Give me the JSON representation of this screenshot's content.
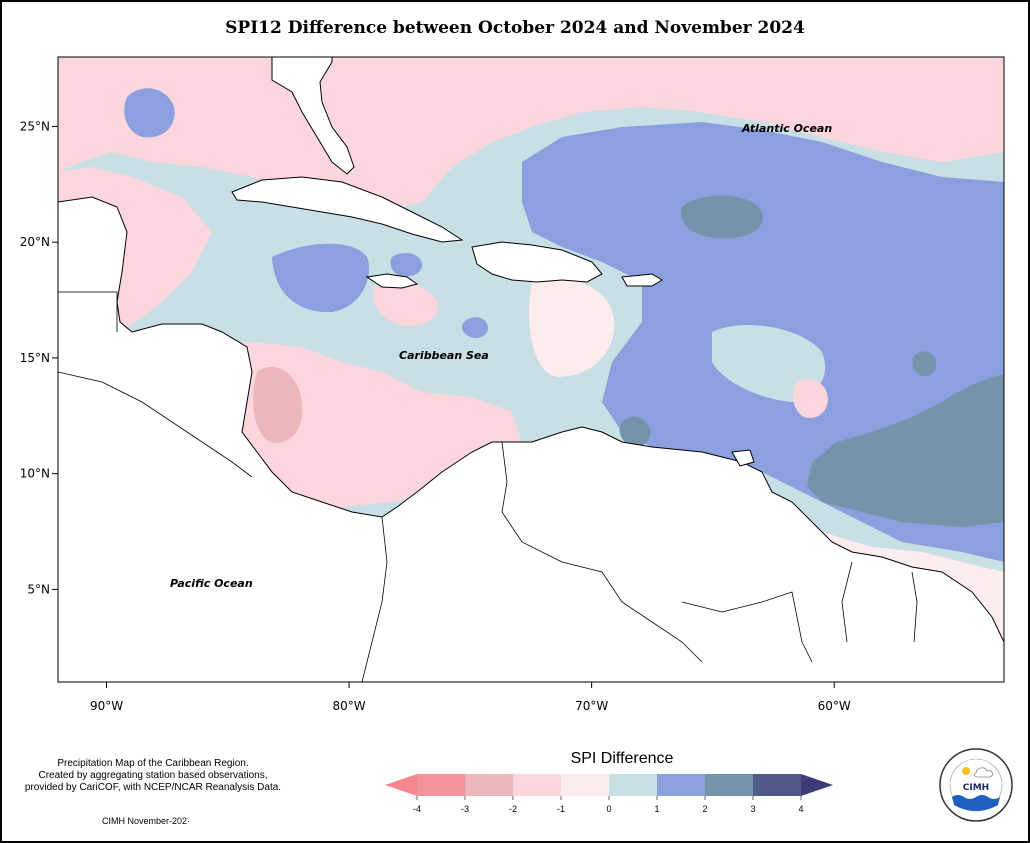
{
  "title": "SPI12 Difference between October 2024 and November 2024",
  "map": {
    "lon_range": [
      -92,
      -53
    ],
    "lat_range": [
      1,
      28
    ],
    "x_ticks": [
      {
        "lon": -90,
        "label": "90°W"
      },
      {
        "lon": -80,
        "label": "80°W"
      },
      {
        "lon": -70,
        "label": "70°W"
      },
      {
        "lon": -60,
        "label": "60°W"
      }
    ],
    "y_ticks": [
      {
        "lat": 25,
        "label": "25°N"
      },
      {
        "lat": 20,
        "label": "20°N"
      },
      {
        "lat": 15,
        "label": "15°N"
      },
      {
        "lat": 10,
        "label": "10°N"
      },
      {
        "lat": 5,
        "label": "5°N"
      }
    ],
    "labels": {
      "atlantic": "Atlantic Ocean",
      "caribbean": "Caribbean Sea",
      "pacific": "Pacific Ocean"
    }
  },
  "legend": {
    "title": "SPI Difference",
    "ticks": [
      "-4",
      "-3",
      "-2",
      "-1",
      "0",
      "1",
      "2",
      "3",
      "4"
    ],
    "colors": [
      "#f3939b",
      "#ecb6ba",
      "#fbd6dc",
      "#fdeced",
      "#c9dfe6",
      "#8c9fdf",
      "#7594ab",
      "#525a8b"
    ],
    "low_arrow_color": "#f58790",
    "high_arrow_color": "#3d3c78"
  },
  "credit": {
    "line1": "Precipitation Map of the Caribbean Region.",
    "line2": "Created by aggregating station based observations,",
    "line3": "provided by CariCOF, with NCEP/NCAR Reanalysis Data.",
    "footer": "CIMH November-202·"
  },
  "logo": {
    "text": "CIMH"
  }
}
